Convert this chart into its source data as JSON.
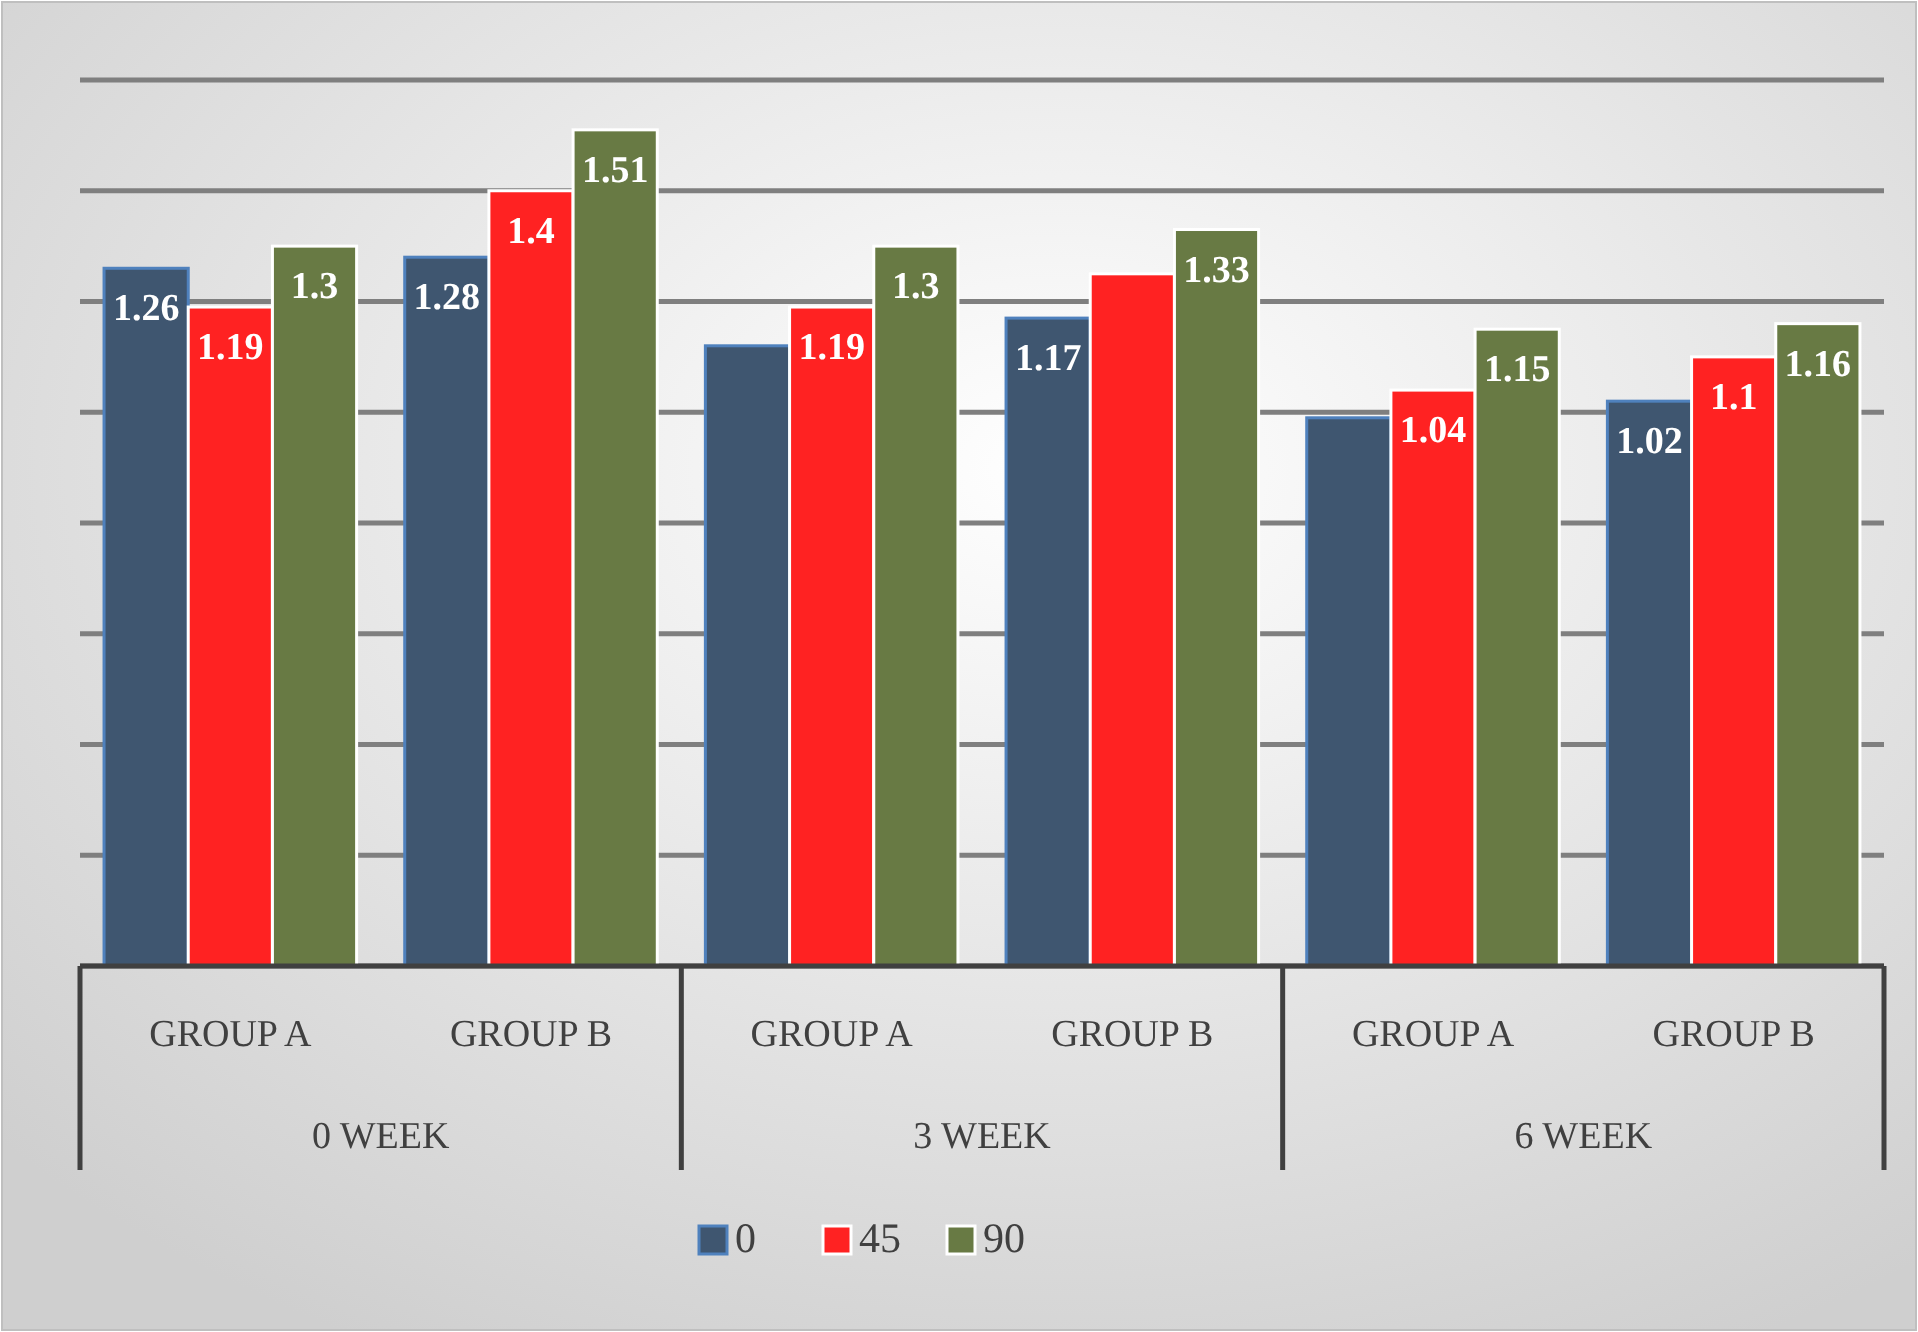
{
  "chart_data": {
    "type": "bar",
    "categories": [
      "GROUP A",
      "GROUP B",
      "GROUP A",
      "GROUP B",
      "GROUP A",
      "GROUP B"
    ],
    "annotations": [
      "0 WEEK",
      "3 WEEK",
      "6 WEEK"
    ],
    "series": [
      {
        "name": "0",
        "color": "#3f5670",
        "values": [
          1.26,
          1.28,
          1.12,
          1.17,
          0.99,
          1.02
        ],
        "value_labels": [
          "1.26",
          "1.28",
          null,
          "1.17",
          null,
          "1.02"
        ]
      },
      {
        "name": "45",
        "color": "#ff2222",
        "values": [
          1.19,
          1.4,
          1.19,
          1.25,
          1.04,
          1.1
        ],
        "value_labels": [
          "1.19",
          "1.4",
          "1.19",
          null,
          "1.04",
          "1.1"
        ]
      },
      {
        "name": "90",
        "color": "#687a44",
        "values": [
          1.3,
          1.51,
          1.3,
          1.33,
          1.15,
          1.16
        ],
        "value_labels": [
          "1.3",
          "1.51",
          "1.3",
          "1.33",
          "1.15",
          "1.16"
        ]
      }
    ],
    "ylim": [
      0,
      1.6
    ],
    "yticks": [
      {
        "value": 0,
        "label": null
      },
      {
        "value": 0.2,
        "label": null
      },
      {
        "value": 0.4,
        "label": null
      },
      {
        "value": 0.6,
        "label": null
      },
      {
        "value": 0.8,
        "label": null
      },
      {
        "value": 1,
        "label": null
      },
      {
        "value": 1.2,
        "label": null
      },
      {
        "value": 1.4,
        "label": null
      },
      {
        "value": 1.6,
        "label": null
      }
    ],
    "tick_labels": "x",
    "grid": "y",
    "legend": "bottom"
  }
}
